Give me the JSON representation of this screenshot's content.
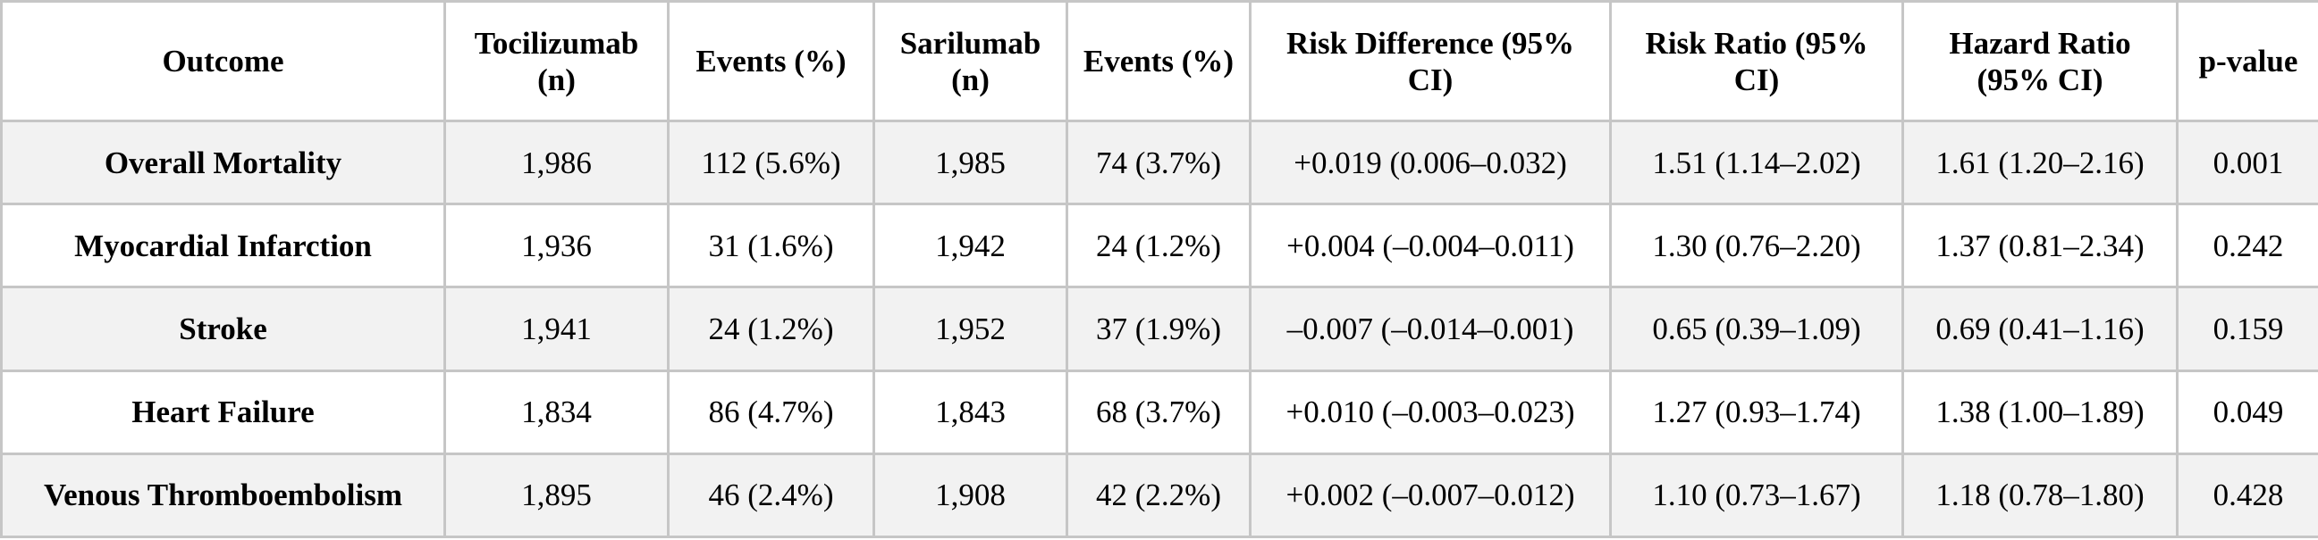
{
  "table": {
    "headers": [
      "Outcome",
      "Tocilizumab (n)",
      "Events (%)",
      "Sarilumab (n)",
      "Events (%)",
      "Risk Difference (95% CI)",
      "Risk Ratio (95% CI)",
      "Hazard Ratio (95% CI)",
      "p-value"
    ],
    "rows": [
      [
        "Overall Mortality",
        "1,986",
        "112 (5.6%)",
        "1,985",
        "74 (3.7%)",
        "+0.019 (0.006–0.032)",
        "1.51 (1.14–2.02)",
        "1.61 (1.20–2.16)",
        "0.001"
      ],
      [
        "Myocardial Infarction",
        "1,936",
        "31 (1.6%)",
        "1,942",
        "24 (1.2%)",
        "+0.004 (–0.004–0.011)",
        "1.30 (0.76–2.20)",
        "1.37 (0.81–2.34)",
        "0.242"
      ],
      [
        "Stroke",
        "1,941",
        "24 (1.2%)",
        "1,952",
        "37 (1.9%)",
        "–0.007 (–0.014–0.001)",
        "0.65 (0.39–1.09)",
        "0.69 (0.41–1.16)",
        "0.159"
      ],
      [
        "Heart Failure",
        "1,834",
        "86 (4.7%)",
        "1,843",
        "68 (3.7%)",
        "+0.010 (–0.003–0.023)",
        "1.27 (0.93–1.74)",
        "1.38 (1.00–1.89)",
        "0.049"
      ],
      [
        "Venous Thromboembolism",
        "1,895",
        "46 (2.4%)",
        "1,908",
        "42 (2.2%)",
        "+0.002 (–0.007–0.012)",
        "1.10 (0.73–1.67)",
        "1.18 (0.78–1.80)",
        "0.428"
      ]
    ]
  }
}
